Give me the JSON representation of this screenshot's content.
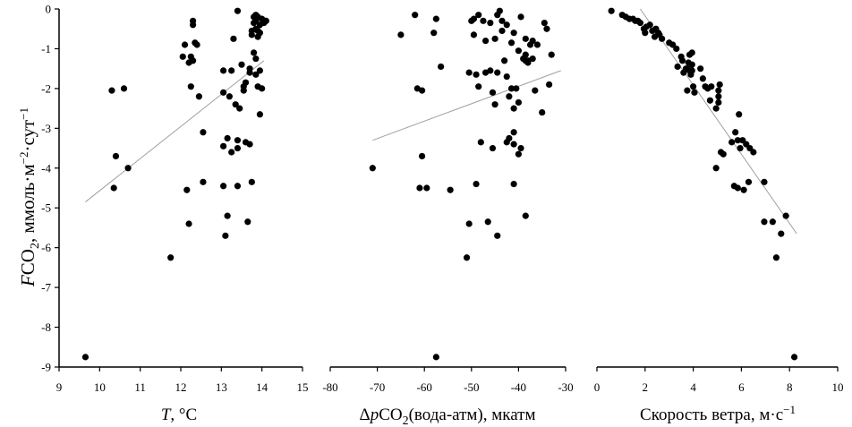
{
  "y_axis": {
    "title_main": "F",
    "title_sub1": "CO",
    "title_sub2": "2",
    "title_rest": ", ммоль·м",
    "title_sup1": "−2",
    "title_mid": "·сут",
    "title_sup2": "−1",
    "ticks": [
      "0",
      "-1",
      "-2",
      "-3",
      "-4",
      "-5",
      "-6",
      "-7",
      "-8",
      "-9"
    ]
  },
  "chart_data": [
    {
      "type": "scatter",
      "x_title_main": "T",
      "x_title_rest": ", °C",
      "xlim": [
        9,
        15
      ],
      "ylim": [
        -9,
        0
      ],
      "xticks": [
        "9",
        "10",
        "11",
        "12",
        "13",
        "14",
        "15"
      ],
      "trend": {
        "x": [
          9.65,
          14.05
        ],
        "y": [
          -4.85,
          -1.3
        ]
      },
      "points": [
        [
          9.65,
          -8.75
        ],
        [
          10.3,
          -2.05
        ],
        [
          10.6,
          -2.0
        ],
        [
          10.4,
          -3.7
        ],
        [
          10.7,
          -4.0
        ],
        [
          10.35,
          -4.5
        ],
        [
          11.75,
          -6.25
        ],
        [
          12.05,
          -1.2
        ],
        [
          12.1,
          -0.9
        ],
        [
          12.2,
          -1.35
        ],
        [
          12.25,
          -1.2
        ],
        [
          12.25,
          -1.95
        ],
        [
          12.3,
          -0.3
        ],
        [
          12.3,
          -0.4
        ],
        [
          12.3,
          -1.3
        ],
        [
          12.35,
          -0.85
        ],
        [
          12.4,
          -0.9
        ],
        [
          12.45,
          -2.2
        ],
        [
          12.15,
          -4.55
        ],
        [
          12.2,
          -5.4
        ],
        [
          12.55,
          -3.1
        ],
        [
          12.55,
          -4.35
        ],
        [
          13.05,
          -1.55
        ],
        [
          13.05,
          -2.1
        ],
        [
          13.05,
          -3.45
        ],
        [
          13.05,
          -4.45
        ],
        [
          13.1,
          -5.7
        ],
        [
          13.15,
          -3.25
        ],
        [
          13.15,
          -5.2
        ],
        [
          13.2,
          -2.2
        ],
        [
          13.25,
          -1.55
        ],
        [
          13.25,
          -3.6
        ],
        [
          13.3,
          -0.75
        ],
        [
          13.35,
          -2.4
        ],
        [
          13.4,
          -3.3
        ],
        [
          13.4,
          -3.5
        ],
        [
          13.4,
          -4.45
        ],
        [
          13.4,
          -0.05
        ],
        [
          13.45,
          -2.5
        ],
        [
          13.5,
          -1.4
        ],
        [
          13.55,
          -1.95
        ],
        [
          13.55,
          -2.05
        ],
        [
          13.6,
          -1.85
        ],
        [
          13.6,
          -3.35
        ],
        [
          13.65,
          -5.35
        ],
        [
          13.7,
          -1.6
        ],
        [
          13.7,
          -3.4
        ],
        [
          13.75,
          -4.35
        ],
        [
          13.75,
          -0.55
        ],
        [
          13.8,
          -1.1
        ],
        [
          13.8,
          -0.2
        ],
        [
          13.8,
          -0.35
        ],
        [
          13.85,
          -0.3
        ],
        [
          13.85,
          -0.5
        ],
        [
          13.85,
          -1.25
        ],
        [
          13.85,
          -1.65
        ],
        [
          13.9,
          -0.2
        ],
        [
          13.9,
          -1.95
        ],
        [
          13.9,
          -0.7
        ],
        [
          13.95,
          -0.4
        ],
        [
          13.95,
          -0.6
        ],
        [
          13.95,
          -1.55
        ],
        [
          13.95,
          -2.65
        ],
        [
          14.0,
          -2.0
        ],
        [
          14.0,
          -0.25
        ],
        [
          14.05,
          -0.35
        ],
        [
          14.1,
          -0.3
        ],
        [
          14.1,
          -0.3
        ],
        [
          13.85,
          -0.15
        ],
        [
          13.9,
          -0.55
        ],
        [
          13.75,
          -0.65
        ],
        [
          13.7,
          -1.5
        ]
      ]
    },
    {
      "type": "scatter",
      "x_title_pre": "Δ",
      "x_title_main": "p",
      "x_title_co": "CO",
      "x_title_sub": "2",
      "x_title_rest": "(вода-атм), мкатм",
      "xlim": [
        -80,
        -30
      ],
      "ylim": [
        -9,
        0
      ],
      "xticks": [
        "-80",
        "-70",
        "-60",
        "-50",
        "-40",
        "-30"
      ],
      "trend": {
        "x": [
          -71,
          -31
        ],
        "y": [
          -3.3,
          -1.55
        ]
      },
      "points": [
        [
          -71,
          -4.0
        ],
        [
          -65,
          -0.65
        ],
        [
          -62,
          -0.15
        ],
        [
          -61.5,
          -2.0
        ],
        [
          -60.5,
          -2.05
        ],
        [
          -61,
          -4.5
        ],
        [
          -60.5,
          -3.7
        ],
        [
          -59.5,
          -4.5
        ],
        [
          -58,
          -0.6
        ],
        [
          -57.5,
          -0.25
        ],
        [
          -57.5,
          -8.75
        ],
        [
          -56.5,
          -1.45
        ],
        [
          -54.5,
          -4.55
        ],
        [
          -51,
          -6.25
        ],
        [
          -50.5,
          -5.4
        ],
        [
          -50.5,
          -1.6
        ],
        [
          -50,
          -0.3
        ],
        [
          -49.5,
          -0.25
        ],
        [
          -49.5,
          -0.65
        ],
        [
          -49,
          -1.65
        ],
        [
          -49,
          -4.4
        ],
        [
          -48.5,
          -0.15
        ],
        [
          -48.5,
          -1.95
        ],
        [
          -48,
          -3.35
        ],
        [
          -47.5,
          -0.3
        ],
        [
          -47,
          -1.6
        ],
        [
          -47,
          -0.8
        ],
        [
          -46.5,
          -5.35
        ],
        [
          -46,
          -1.55
        ],
        [
          -46,
          -0.35
        ],
        [
          -45.5,
          -2.1
        ],
        [
          -45.5,
          -3.5
        ],
        [
          -45,
          -0.75
        ],
        [
          -45,
          -2.4
        ],
        [
          -44.5,
          -0.15
        ],
        [
          -44.5,
          -1.6
        ],
        [
          -44.5,
          -5.7
        ],
        [
          -44,
          -0.05
        ],
        [
          -43.5,
          -0.3
        ],
        [
          -43.5,
          -0.55
        ],
        [
          -43,
          -1.3
        ],
        [
          -42.5,
          -0.4
        ],
        [
          -42.5,
          -3.35
        ],
        [
          -42.5,
          -1.7
        ],
        [
          -42,
          -2.2
        ],
        [
          -42,
          -3.25
        ],
        [
          -41.5,
          -2.0
        ],
        [
          -41.5,
          -0.85
        ],
        [
          -41,
          -2.5
        ],
        [
          -41,
          -3.4
        ],
        [
          -41,
          -4.4
        ],
        [
          -41,
          -3.1
        ],
        [
          -41,
          -0.6
        ],
        [
          -40.5,
          -2.0
        ],
        [
          -40,
          -1.05
        ],
        [
          -40,
          -2.35
        ],
        [
          -40,
          -3.65
        ],
        [
          -39.5,
          -0.2
        ],
        [
          -39.5,
          -3.5
        ],
        [
          -39,
          -1.25
        ],
        [
          -38.5,
          -1.15
        ],
        [
          -38.5,
          -1.3
        ],
        [
          -38.5,
          -0.75
        ],
        [
          -38.5,
          -5.2
        ],
        [
          -38,
          -1.3
        ],
        [
          -38,
          -1.35
        ],
        [
          -37.5,
          -0.9
        ],
        [
          -37,
          -1.25
        ],
        [
          -37,
          -0.8
        ],
        [
          -36.5,
          -2.05
        ],
        [
          -36,
          -0.9
        ],
        [
          -35,
          -2.6
        ],
        [
          -34.5,
          -0.35
        ],
        [
          -34,
          -0.5
        ],
        [
          -33.5,
          -1.9
        ],
        [
          -33,
          -1.15
        ]
      ]
    },
    {
      "type": "scatter",
      "x_title_main": "Скорость ветра, м·с",
      "x_title_sup": "−1",
      "xlim": [
        0,
        10
      ],
      "ylim": [
        -9,
        0
      ],
      "xticks": [
        "0",
        "2",
        "4",
        "6",
        "8",
        "10"
      ],
      "trend": {
        "x": [
          1.8,
          8.3
        ],
        "y": [
          0,
          -5.65
        ]
      },
      "points": [
        [
          0.6,
          -0.05
        ],
        [
          1.05,
          -0.15
        ],
        [
          1.2,
          -0.2
        ],
        [
          1.35,
          -0.25
        ],
        [
          1.5,
          -0.25
        ],
        [
          1.6,
          -0.3
        ],
        [
          1.7,
          -0.3
        ],
        [
          1.8,
          -0.35
        ],
        [
          1.95,
          -0.5
        ],
        [
          2.0,
          -0.6
        ],
        [
          2.05,
          -0.45
        ],
        [
          2.2,
          -0.4
        ],
        [
          2.3,
          -0.55
        ],
        [
          2.4,
          -0.7
        ],
        [
          2.45,
          -0.5
        ],
        [
          2.55,
          -0.6
        ],
        [
          2.6,
          -0.65
        ],
        [
          2.7,
          -0.75
        ],
        [
          3.0,
          -0.85
        ],
        [
          3.15,
          -0.9
        ],
        [
          3.3,
          -1.0
        ],
        [
          3.35,
          -1.45
        ],
        [
          3.5,
          -1.2
        ],
        [
          3.55,
          -1.3
        ],
        [
          3.6,
          -1.6
        ],
        [
          3.7,
          -1.5
        ],
        [
          3.75,
          -2.05
        ],
        [
          3.75,
          -1.5
        ],
        [
          3.8,
          -1.35
        ],
        [
          3.85,
          -1.15
        ],
        [
          3.85,
          -1.55
        ],
        [
          3.9,
          -1.65
        ],
        [
          3.95,
          -1.1
        ],
        [
          3.95,
          -1.4
        ],
        [
          3.95,
          -1.55
        ],
        [
          4.0,
          -1.95
        ],
        [
          4.05,
          -2.1
        ],
        [
          4.3,
          -1.5
        ],
        [
          4.4,
          -1.75
        ],
        [
          4.5,
          -1.95
        ],
        [
          4.6,
          -2.0
        ],
        [
          4.7,
          -2.3
        ],
        [
          4.75,
          -1.95
        ],
        [
          4.95,
          -2.5
        ],
        [
          4.95,
          -4.0
        ],
        [
          5.05,
          -2.05
        ],
        [
          5.05,
          -2.2
        ],
        [
          5.05,
          -2.35
        ],
        [
          5.1,
          -1.9
        ],
        [
          5.15,
          -3.6
        ],
        [
          5.25,
          -3.65
        ],
        [
          5.6,
          -3.35
        ],
        [
          5.7,
          -4.45
        ],
        [
          5.75,
          -3.1
        ],
        [
          5.85,
          -3.3
        ],
        [
          5.85,
          -4.5
        ],
        [
          5.9,
          -2.65
        ],
        [
          5.95,
          -3.5
        ],
        [
          6.05,
          -3.3
        ],
        [
          6.1,
          -4.55
        ],
        [
          6.2,
          -3.4
        ],
        [
          6.3,
          -4.35
        ],
        [
          6.35,
          -3.5
        ],
        [
          6.5,
          -3.6
        ],
        [
          6.95,
          -4.35
        ],
        [
          6.95,
          -5.35
        ],
        [
          7.3,
          -5.35
        ],
        [
          7.45,
          -6.25
        ],
        [
          7.65,
          -5.65
        ],
        [
          7.85,
          -5.2
        ],
        [
          8.2,
          -8.75
        ]
      ]
    }
  ]
}
